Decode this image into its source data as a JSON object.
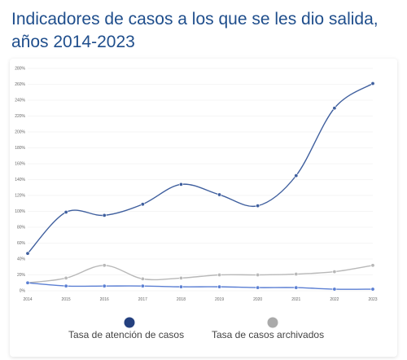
{
  "page": {
    "title_line1": "Indicadores de casos a los que se les dio salida,",
    "title_line2": "años 2014-2023"
  },
  "chart_data": {
    "type": "line",
    "title": "Indicadores de casos a los que se les dio salida, años 2014-2023",
    "x": [
      "2014",
      "2015",
      "2016",
      "2017",
      "2018",
      "2019",
      "2020",
      "2021",
      "2022",
      "2023"
    ],
    "ylim": [
      0,
      280
    ],
    "yticks": [
      0,
      20,
      40,
      60,
      80,
      100,
      120,
      140,
      160,
      180,
      200,
      220,
      240,
      260,
      280
    ],
    "ytick_labels": [
      "0%",
      "20%",
      "40%",
      "60%",
      "80%",
      "100%",
      "120%",
      "140%",
      "160%",
      "180%",
      "200%",
      "220%",
      "240%",
      "260%",
      "280%"
    ],
    "grid": true,
    "smooth": true,
    "series": [
      {
        "name": "Tasa de atención de casos",
        "color": "#3f5f9e",
        "values": [
          47,
          99,
          95,
          109,
          134,
          121,
          107,
          145,
          230,
          261
        ]
      },
      {
        "name": "Tasa de casos archivados",
        "color": "#b8b8b8",
        "values": [
          10,
          16,
          32,
          15,
          16,
          20,
          20,
          21,
          24,
          32
        ]
      },
      {
        "color": "#5b7fd3",
        "values": [
          10,
          6,
          6,
          6,
          5,
          5,
          4,
          4,
          2,
          2
        ]
      }
    ],
    "legend": {
      "placement": "bottom",
      "items": [
        {
          "label": "Tasa de atención de casos",
          "color": "#24407f"
        },
        {
          "label": "Tasa de casos archivados",
          "color": "#aaaaaa"
        }
      ]
    }
  }
}
